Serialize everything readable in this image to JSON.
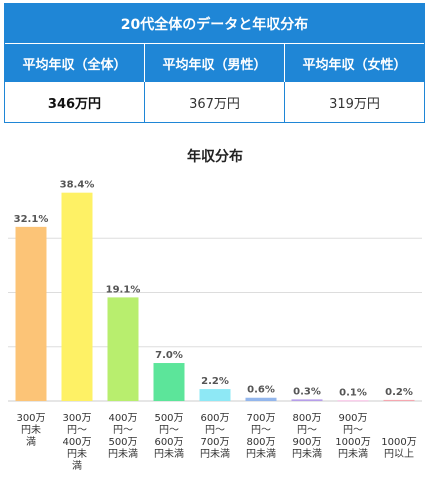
{
  "summary": {
    "title": "20代全体のデータと年収分布",
    "headers": [
      "平均年収（全体）",
      "平均年収（男性）",
      "平均年収（女性）"
    ],
    "values": [
      "346万円",
      "367万円",
      "319万円"
    ]
  },
  "chart_data": {
    "type": "bar",
    "title": "年収分布",
    "categories": [
      [
        "300万",
        "円未",
        "満"
      ],
      [
        "300万",
        "円〜",
        "400万",
        "円未",
        "満"
      ],
      [
        "400万",
        "円〜",
        "500万",
        "円未満"
      ],
      [
        "500万",
        "円〜",
        "600万",
        "円未満"
      ],
      [
        "600万",
        "円〜",
        "700万",
        "円未満"
      ],
      [
        "700万",
        "円〜",
        "800万",
        "円未満"
      ],
      [
        "800万",
        "円〜",
        "900万",
        "円未満"
      ],
      [
        "900万",
        "円〜",
        "1000万",
        "円未満"
      ],
      [
        "1000万",
        "円以上"
      ]
    ],
    "values": [
      32.1,
      38.4,
      19.1,
      7.0,
      2.2,
      0.6,
      0.3,
      0.1,
      0.2
    ],
    "value_labels": [
      "32.1%",
      "38.4%",
      "19.1%",
      "7.0%",
      "2.2%",
      "0.6%",
      "0.3%",
      "0.1%",
      "0.2%"
    ],
    "colors": [
      "#fcc477",
      "#fef165",
      "#b8ee6e",
      "#5ce59a",
      "#8ee8f5",
      "#93b6ec",
      "#b69ee9",
      "#f5a8dc",
      "#f5a7b0"
    ],
    "ylim": [
      0,
      40
    ],
    "grid": true
  }
}
